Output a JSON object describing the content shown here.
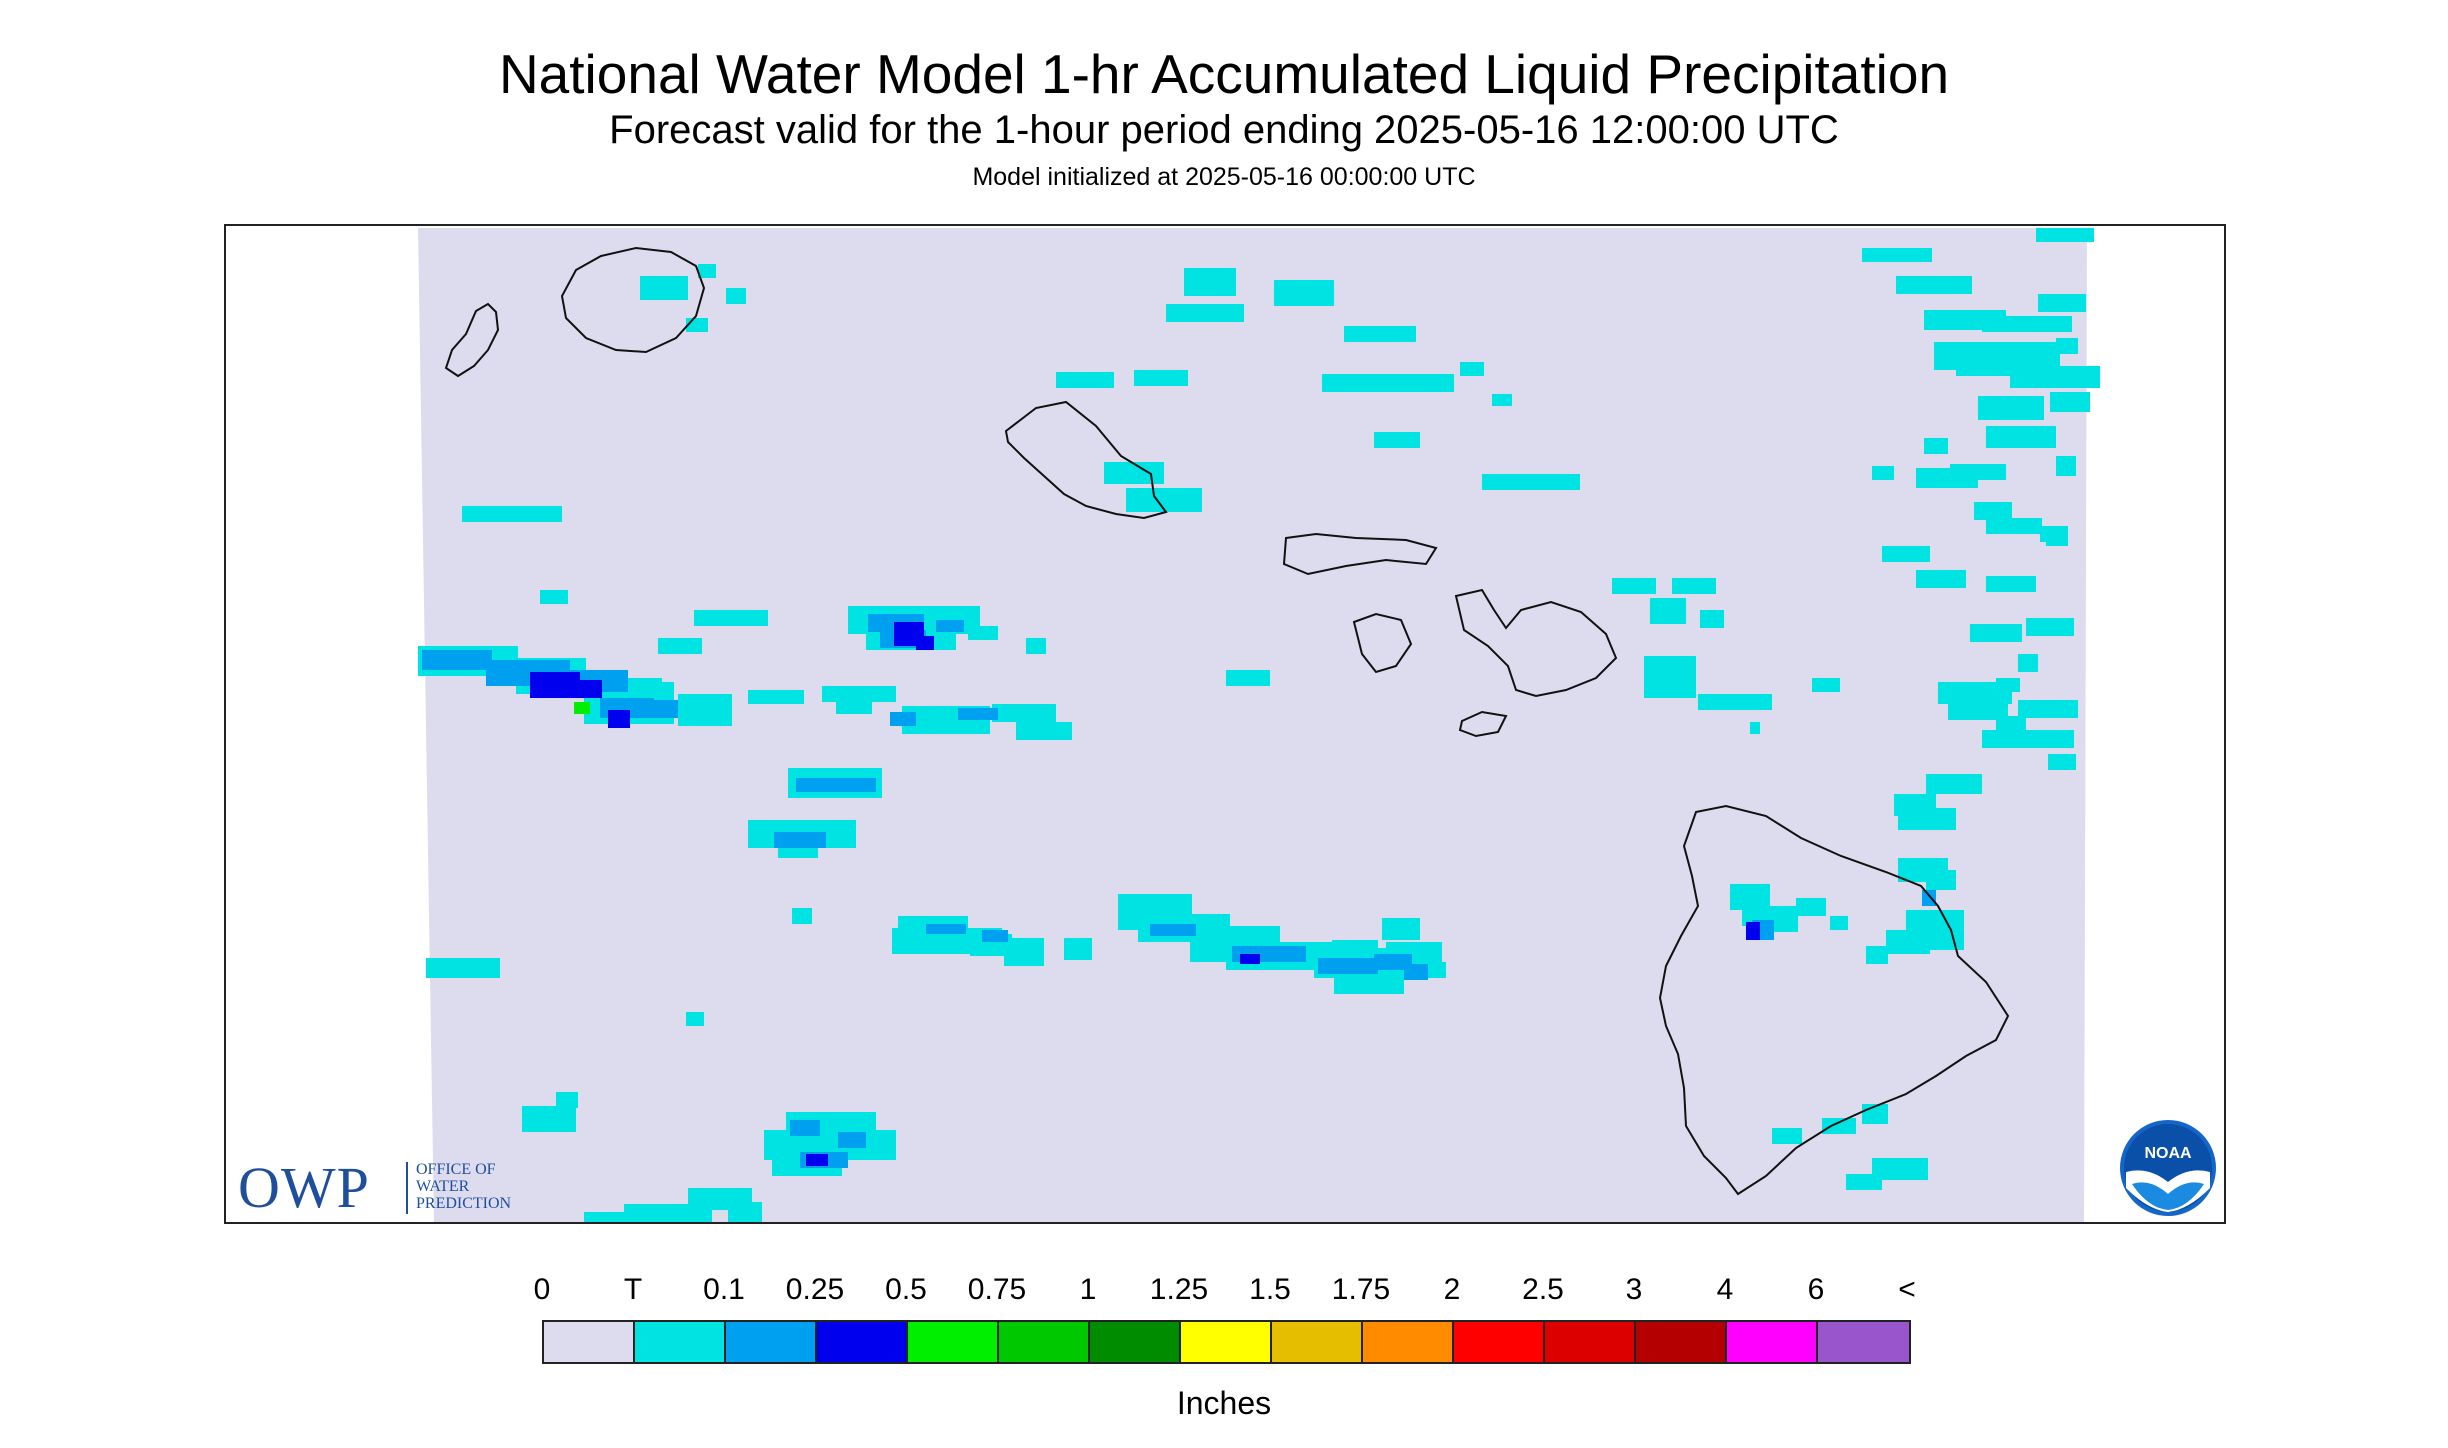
{
  "header": {
    "title": "National Water Model 1-hr Accumulated Liquid Precipitation",
    "subtitle": "Forecast valid for the 1-hour period ending 2025-05-16 12:00:00 UTC",
    "init": "Model initialized at 2025-05-16 00:00:00 UTC"
  },
  "colors": {
    "domain": "#dcdcee",
    "outside": "#ffffff",
    "coast": "#111111",
    "c_T": "#00e3e3",
    "c_01": "#00a0f0",
    "c_025": "#0000ee",
    "c_05": "#00ee00"
  },
  "logos": {
    "owp_letters": "OWP",
    "owp_line1": "OFFICE OF",
    "owp_line2": "WATER",
    "owp_line3": "PREDICTION",
    "noaa": "NOAA"
  },
  "legend": {
    "labels": [
      "0",
      "T",
      "0.1",
      "0.25",
      "0.5",
      "0.75",
      "1",
      "1.25",
      "1.5",
      "1.75",
      "2",
      "2.5",
      "3",
      "4",
      "6",
      "<"
    ],
    "colors": [
      "#dcdcee",
      "#00e3e3",
      "#00a0f0",
      "#0000ee",
      "#00ee00",
      "#00c800",
      "#008c00",
      "#ffff00",
      "#e6be00",
      "#ff8c00",
      "#ff0000",
      "#dc0000",
      "#b40000",
      "#ff00ff",
      "#9955cc"
    ],
    "unit": "Inches"
  }
}
